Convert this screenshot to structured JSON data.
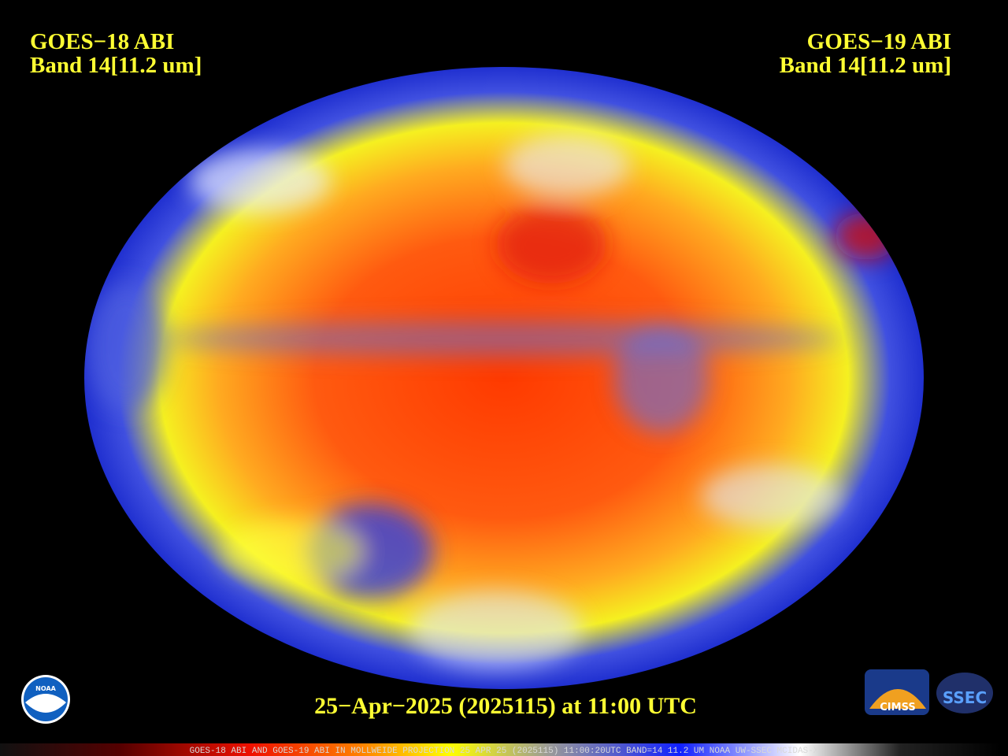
{
  "left_label": {
    "satellite": "GOES−18 ABI",
    "band": "Band 14[11.2 um]"
  },
  "right_label": {
    "satellite": "GOES−19 ABI",
    "band": "Band 14[11.2 um]"
  },
  "timestamp": "25−Apr−2025 (2025115) at 11:00 UTC",
  "footer": "GOES-18 ABI AND GOES-19 ABI IN MOLLWEIDE PROJECTION 25 APR 25 (2025115) 11:00:20UTC BAND=14 11.2 UM NOAA UW-SSEC MCIDAS-X",
  "logos": {
    "noaa": "NOAA",
    "cimss": "CIMSS",
    "ssec": "SSEC"
  }
}
